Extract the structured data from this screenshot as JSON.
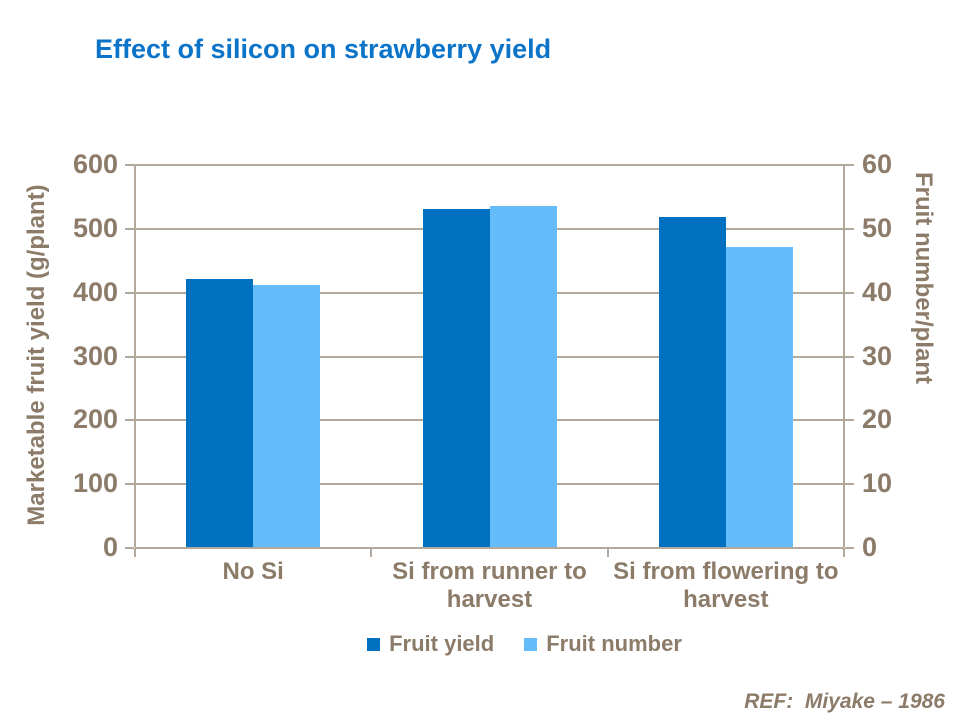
{
  "slide": {
    "title": "Effect of silicon on strawberry yield",
    "ref": "REF:  Miyake – 1986"
  },
  "colors": {
    "title_blue": "#0C74C8",
    "axis_text_brown": "#8C7B69",
    "grid_gray": "#B2A89C",
    "fruit_yield_blue": "#0070C0",
    "fruit_number_blue": "#66BBFA",
    "background": "#FFFFFF"
  },
  "chart_data": {
    "type": "bar",
    "title": "Effect of silicon on strawberry yield",
    "categories": [
      "No Si",
      "Si from runner to harvest",
      "Si from flowering to harvest"
    ],
    "series": [
      {
        "name": "Fruit yield",
        "axis": "left",
        "color": "#0070C0",
        "values": [
          420,
          530,
          517
        ]
      },
      {
        "name": "Fruit number",
        "axis": "right",
        "color": "#66BBFA",
        "values": [
          41,
          53.5,
          47
        ]
      }
    ],
    "left_axis": {
      "label": "Marketable fruit yield (g/plant)",
      "min": 0,
      "max": 600,
      "tick_step": 100,
      "ticks": [
        0,
        100,
        200,
        300,
        400,
        500,
        600
      ]
    },
    "right_axis": {
      "label": "Fruit number/plant",
      "min": 0,
      "max": 60,
      "tick_step": 10,
      "ticks": [
        0,
        10,
        20,
        30,
        40,
        50,
        60
      ]
    },
    "gridlines": true,
    "legend": {
      "position": "bottom",
      "entries": [
        "Fruit yield",
        "Fruit number"
      ]
    }
  }
}
